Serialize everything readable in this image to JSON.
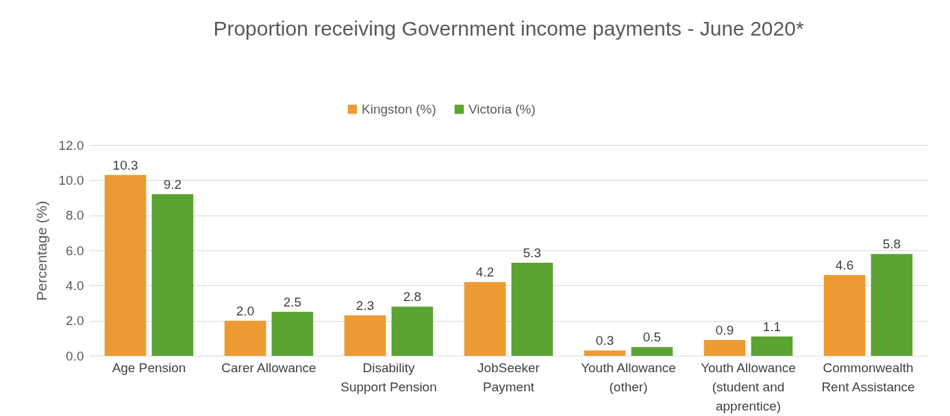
{
  "chart_data": {
    "type": "bar",
    "title": "Proportion receiving Government income payments - June 2020*",
    "ylabel": "Percentage (%)",
    "categories": [
      "Age Pension",
      "Carer Allowance",
      "Disability Support Pension",
      "JobSeeker Payment",
      "Youth Allowance (other)",
      "Youth Allowance (student and apprentice)",
      "Commonwealth Rent Assistance"
    ],
    "series": [
      {
        "name": "Kingston (%)",
        "color": "#ed9a33",
        "values": [
          10.3,
          2.0,
          2.3,
          4.2,
          0.3,
          0.9,
          4.6
        ],
        "value_labels": [
          "10.3",
          "2.0",
          "2.3",
          "4.2",
          "0.3",
          "0.9",
          "4.6"
        ]
      },
      {
        "name": "Victoria (%)",
        "color": "#5ba332",
        "values": [
          9.2,
          2.5,
          2.8,
          5.3,
          0.5,
          1.1,
          5.8
        ],
        "value_labels": [
          "9.2",
          "2.5",
          "2.8",
          "5.3",
          "0.5",
          "1.1",
          "5.8"
        ]
      }
    ],
    "ylim": [
      0,
      12
    ],
    "yticks": [
      {
        "value": 0,
        "label": "0.0"
      },
      {
        "value": 2,
        "label": "2.0"
      },
      {
        "value": 4,
        "label": "4.0"
      },
      {
        "value": 6,
        "label": "6.0"
      },
      {
        "value": 8,
        "label": "8.0"
      },
      {
        "value": 10,
        "label": "10.0"
      },
      {
        "value": 12,
        "label": "12.0"
      }
    ],
    "grid": "y",
    "legend": "top"
  }
}
